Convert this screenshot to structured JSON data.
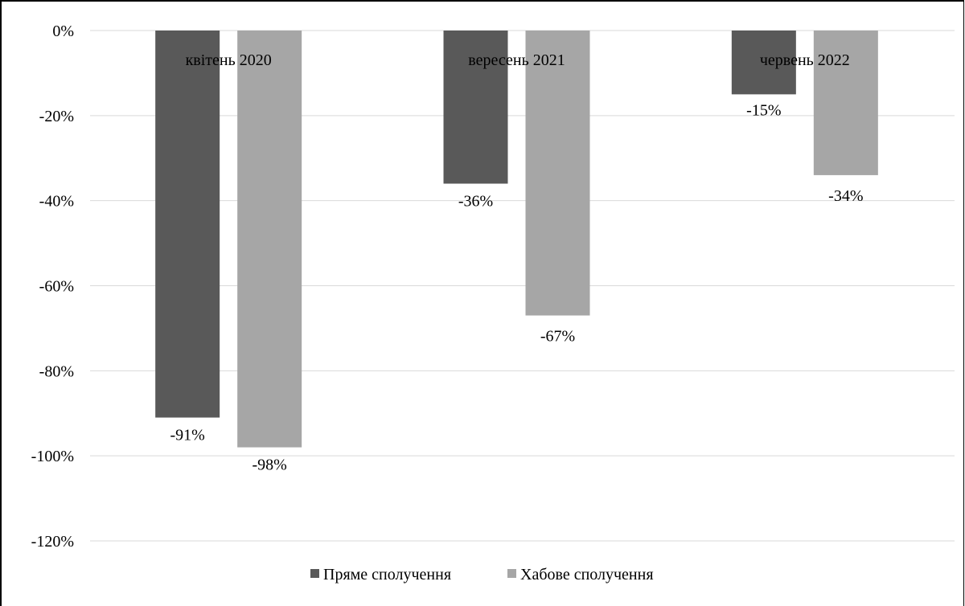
{
  "chart_data": {
    "type": "bar",
    "categories": [
      "квітень 2020",
      "вересень 2021",
      "червень 2022"
    ],
    "series": [
      {
        "name": "Пряме сполучення",
        "values": [
          -91,
          -36,
          -15
        ],
        "labels": [
          "-91%",
          "-36%",
          "-15%"
        ],
        "color": "#595959"
      },
      {
        "name": "Хабове сполучення",
        "values": [
          -98,
          -67,
          -34
        ],
        "labels": [
          "-98%",
          "-67%",
          "-34%"
        ],
        "color": "#a6a6a6"
      }
    ],
    "yticks": [
      "0%",
      "-20%",
      "-40%",
      "-60%",
      "-80%",
      "-100%",
      "-120%"
    ],
    "ylim": [
      -120,
      0
    ],
    "title": "",
    "xlabel": "",
    "ylabel": "",
    "grid": true,
    "legend_position": "bottom",
    "gridline_color": "#d9d9d9"
  }
}
